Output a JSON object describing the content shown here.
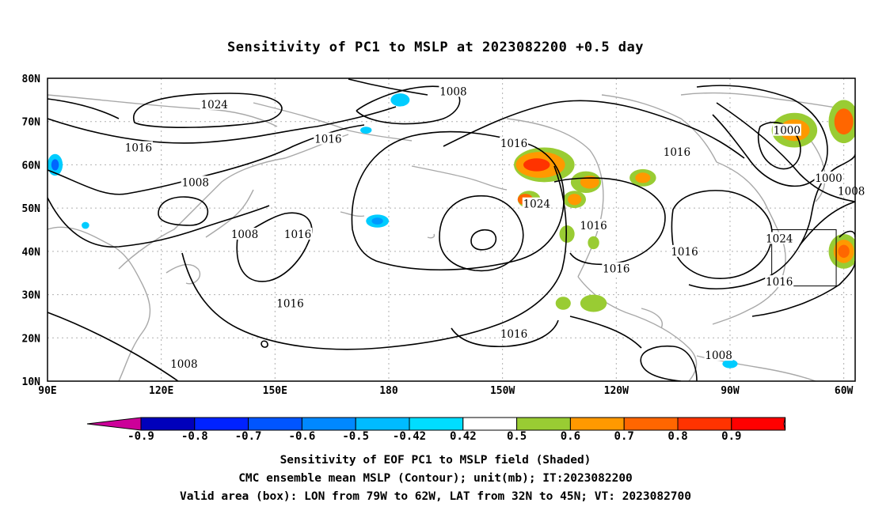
{
  "title": "Sensitivity of PC1 to MSLP at 2023082200 +0.5 day",
  "map": {
    "lon_range": [
      90,
      303
    ],
    "lat_range": [
      10,
      80
    ],
    "lat_ticks": [
      {
        "lat": 80,
        "label": "80N"
      },
      {
        "lat": 70,
        "label": "70N"
      },
      {
        "lat": 60,
        "label": "60N"
      },
      {
        "lat": 50,
        "label": "50N"
      },
      {
        "lat": 40,
        "label": "40N"
      },
      {
        "lat": 30,
        "label": "30N"
      },
      {
        "lat": 20,
        "label": "20N"
      },
      {
        "lat": 10,
        "label": "10N"
      }
    ],
    "lon_ticks": [
      {
        "lon": 90,
        "label": "90E"
      },
      {
        "lon": 120,
        "label": "120E"
      },
      {
        "lon": 150,
        "label": "150E"
      },
      {
        "lon": 180,
        "label": "180"
      },
      {
        "lon": 210,
        "label": "150W"
      },
      {
        "lon": 240,
        "label": "120W"
      },
      {
        "lon": 270,
        "label": "90W"
      },
      {
        "lon": 300,
        "label": "60W"
      }
    ],
    "valid_box": {
      "lon": [
        281,
        298
      ],
      "lat": [
        32,
        45
      ]
    },
    "contour_labels": [
      {
        "text": "1008",
        "lon": 197,
        "lat": 77
      },
      {
        "text": "1024",
        "lon": 134,
        "lat": 74
      },
      {
        "text": "1016",
        "lon": 114,
        "lat": 64
      },
      {
        "text": "1016",
        "lon": 164,
        "lat": 66
      },
      {
        "text": "1016",
        "lon": 213,
        "lat": 65
      },
      {
        "text": "1016",
        "lon": 256,
        "lat": 63
      },
      {
        "text": "1000",
        "lon": 285,
        "lat": 68
      },
      {
        "text": "1000",
        "lon": 296,
        "lat": 57
      },
      {
        "text": "1008",
        "lon": 302,
        "lat": 54
      },
      {
        "text": "1008",
        "lon": 129,
        "lat": 56
      },
      {
        "text": "1008",
        "lon": 142,
        "lat": 44
      },
      {
        "text": "1016",
        "lon": 156,
        "lat": 44
      },
      {
        "text": "1024",
        "lon": 219,
        "lat": 51
      },
      {
        "text": "1016",
        "lon": 234,
        "lat": 46
      },
      {
        "text": "1016",
        "lon": 258,
        "lat": 40
      },
      {
        "text": "1016",
        "lon": 240,
        "lat": 36
      },
      {
        "text": "1024",
        "lon": 283,
        "lat": 43
      },
      {
        "text": "1016",
        "lon": 283,
        "lat": 33
      },
      {
        "text": "1016",
        "lon": 154,
        "lat": 28
      },
      {
        "text": "1016",
        "lon": 213,
        "lat": 21
      },
      {
        "text": "1008",
        "lon": 126,
        "lat": 14
      },
      {
        "text": "1008",
        "lon": 267,
        "lat": 16
      }
    ],
    "shading": [
      {
        "level": 0.5,
        "color": "#99cc33",
        "lon": 287,
        "lat": 68,
        "rx": 6,
        "ry": 4
      },
      {
        "level": 0.6,
        "color": "#ff9900",
        "lon": 287,
        "lat": 68,
        "rx": 4,
        "ry": 2.5
      },
      {
        "level": 0.5,
        "color": "#99cc33",
        "lon": 300,
        "lat": 70,
        "rx": 4,
        "ry": 5
      },
      {
        "level": 0.7,
        "color": "#ff6600",
        "lon": 300,
        "lat": 70,
        "rx": 2.5,
        "ry": 3
      },
      {
        "level": 0.5,
        "color": "#99cc33",
        "lon": 221,
        "lat": 60,
        "rx": 8,
        "ry": 4
      },
      {
        "level": 0.6,
        "color": "#ff9900",
        "lon": 220,
        "lat": 60,
        "rx": 6.5,
        "ry": 3
      },
      {
        "level": 0.8,
        "color": "#ff3300",
        "lon": 219,
        "lat": 60,
        "rx": 3.5,
        "ry": 1.5
      },
      {
        "level": 0.5,
        "color": "#99cc33",
        "lon": 217,
        "lat": 52,
        "rx": 3,
        "ry": 2
      },
      {
        "level": 0.7,
        "color": "#ff6600",
        "lon": 216,
        "lat": 52,
        "rx": 2,
        "ry": 1.3
      },
      {
        "level": 0.5,
        "color": "#99cc33",
        "lon": 232,
        "lat": 56,
        "rx": 4,
        "ry": 2.5
      },
      {
        "level": 0.6,
        "color": "#ff9900",
        "lon": 233,
        "lat": 56,
        "rx": 2.5,
        "ry": 1.5
      },
      {
        "level": 0.5,
        "color": "#99cc33",
        "lon": 229,
        "lat": 52,
        "rx": 3,
        "ry": 2
      },
      {
        "level": 0.6,
        "color": "#ff9900",
        "lon": 229,
        "lat": 52,
        "rx": 1.8,
        "ry": 1.3
      },
      {
        "level": 0.5,
        "color": "#99cc33",
        "lon": 247,
        "lat": 57,
        "rx": 3.5,
        "ry": 2
      },
      {
        "level": 0.6,
        "color": "#ff9900",
        "lon": 247,
        "lat": 57,
        "rx": 2,
        "ry": 1.2
      },
      {
        "level": 0.5,
        "color": "#99cc33",
        "lon": 227,
        "lat": 44,
        "rx": 2,
        "ry": 2
      },
      {
        "level": 0.5,
        "color": "#99cc33",
        "lon": 234,
        "lat": 42,
        "rx": 1.5,
        "ry": 1.5
      },
      {
        "level": 0.5,
        "color": "#99cc33",
        "lon": 300,
        "lat": 40,
        "rx": 4,
        "ry": 4
      },
      {
        "level": 0.6,
        "color": "#ff9900",
        "lon": 300,
        "lat": 40,
        "rx": 2.7,
        "ry": 2.7
      },
      {
        "level": 0.7,
        "color": "#ff6600",
        "lon": 300,
        "lat": 40,
        "rx": 1.5,
        "ry": 1.5
      },
      {
        "level": 0.5,
        "color": "#99cc33",
        "lon": 234,
        "lat": 28,
        "rx": 3.5,
        "ry": 2
      },
      {
        "level": 0.5,
        "color": "#99cc33",
        "lon": 226,
        "lat": 28,
        "rx": 2,
        "ry": 1.5
      },
      {
        "level": -0.42,
        "color": "#00ccff",
        "lon": 183,
        "lat": 75,
        "rx": 2.5,
        "ry": 1.5
      },
      {
        "level": -0.42,
        "color": "#00ccff",
        "lon": 177,
        "lat": 47,
        "rx": 3,
        "ry": 1.5
      },
      {
        "level": -0.5,
        "color": "#0099ff",
        "lon": 177,
        "lat": 47,
        "rx": 1.5,
        "ry": 0.8
      },
      {
        "level": -0.42,
        "color": "#00ccff",
        "lon": 92,
        "lat": 60,
        "rx": 2,
        "ry": 2.5
      },
      {
        "level": -0.6,
        "color": "#0066ff",
        "lon": 92,
        "lat": 60,
        "rx": 1,
        "ry": 1.3
      },
      {
        "level": -0.42,
        "color": "#00ccff",
        "lon": 270,
        "lat": 14,
        "rx": 2,
        "ry": 1
      },
      {
        "level": -0.42,
        "color": "#00ccff",
        "lon": 100,
        "lat": 46,
        "rx": 1,
        "ry": 0.8
      },
      {
        "level": -0.42,
        "color": "#00ccff",
        "lon": 174,
        "lat": 68,
        "rx": 1.5,
        "ry": 0.8
      }
    ]
  },
  "colorbar": {
    "levels": [
      "-0.9",
      "-0.8",
      "-0.7",
      "-0.6",
      "-0.5",
      "-0.42",
      "0.42",
      "0.5",
      "0.6",
      "0.7",
      "0.8",
      "0.9"
    ],
    "colors": [
      "#cc0099",
      "#0000bb",
      "#0022ff",
      "#0055ff",
      "#0088ff",
      "#00bbff",
      "#00ddff",
      "#ffffff",
      "#99cc33",
      "#ff9900",
      "#ff6600",
      "#ff3300",
      "#ff0000",
      "#ff99cc"
    ]
  },
  "captions": {
    "line1": "Sensitivity of EOF PC1 to MSLP field (Shaded)",
    "line2": "CMC ensemble mean MSLP (Contour); unit(mb); IT:2023082200",
    "line3": "Valid area (box): LON from 79W to 62W, LAT from 32N to 45N; VT: 2023082700"
  }
}
